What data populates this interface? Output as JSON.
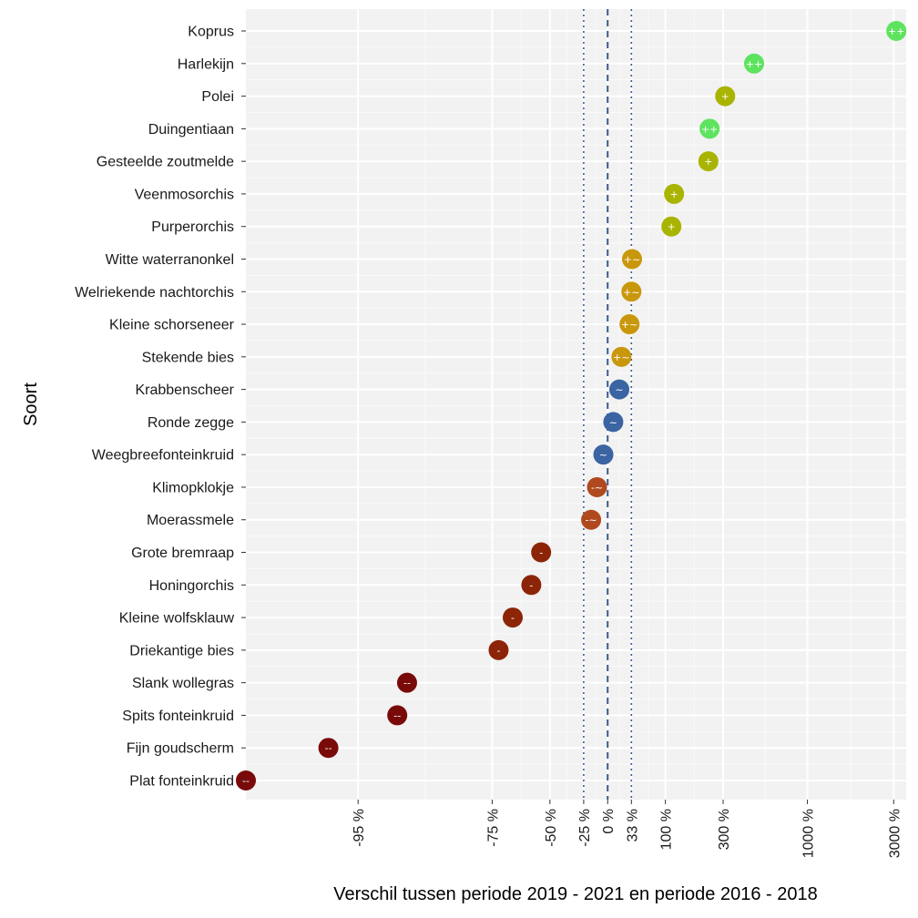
{
  "chart_data": {
    "type": "scatter",
    "title": "",
    "xlabel": "Verschil tussen periode 2019 - 2021 en periode 2016 - 2018",
    "ylabel": "Soort",
    "x_transform": "log(1 + pct/100)",
    "xlim": [
      -100,
      3500
    ],
    "x_ticks": [
      -95,
      -75,
      -50,
      -25,
      0,
      33,
      100,
      300,
      1000,
      3000
    ],
    "x_tick_labels": [
      "-95 %",
      "-75 %",
      "-50 %",
      "-25 %",
      "0 %",
      "33 %",
      "100 %",
      "300 %",
      "1000 %",
      "3000 %"
    ],
    "reference_lines": [
      {
        "value": 0,
        "style": "dashed"
      },
      {
        "value": -25,
        "style": "dotted"
      },
      {
        "value": 33,
        "style": "dotted"
      }
    ],
    "classes": {
      "++": "#5ee35e",
      "+": "#a8b400",
      "+~": "#c9970c",
      "~": "#3b64a3",
      "-~": "#b04a1e",
      "-": "#8c2508",
      "--": "#7a0a0a"
    },
    "points": [
      {
        "species": "Koprus",
        "value": 3100,
        "class": "++"
      },
      {
        "species": "Harlekijn",
        "value": 480,
        "class": "++"
      },
      {
        "species": "Polei",
        "value": 310,
        "class": "+"
      },
      {
        "species": "Duingentiaan",
        "value": 240,
        "class": "++"
      },
      {
        "species": "Gesteelde zoutmelde",
        "value": 235,
        "class": "+"
      },
      {
        "species": "Veenmosorchis",
        "value": 122,
        "class": "+"
      },
      {
        "species": "Purperorchis",
        "value": 115,
        "class": "+"
      },
      {
        "species": "Witte waterranonkel",
        "value": 34,
        "class": "+~"
      },
      {
        "species": "Welriekende nachtorchis",
        "value": 33,
        "class": "+~"
      },
      {
        "species": "Kleine schorseneer",
        "value": 30,
        "class": "+~"
      },
      {
        "species": "Stekende bies",
        "value": 18,
        "class": "+~"
      },
      {
        "species": "Krabbenscheer",
        "value": 15,
        "class": "~"
      },
      {
        "species": "Ronde zegge",
        "value": 7,
        "class": "~"
      },
      {
        "species": "Weegbreefonteinkruid",
        "value": -5,
        "class": "~"
      },
      {
        "species": "Klimopklokje",
        "value": -12,
        "class": "-~"
      },
      {
        "species": "Moerassmele",
        "value": -18,
        "class": "-~"
      },
      {
        "species": "Grote bremraap",
        "value": -55,
        "class": "-"
      },
      {
        "species": "Honingorchis",
        "value": -60,
        "class": "-"
      },
      {
        "species": "Kleine wolfsklauw",
        "value": -68,
        "class": "-"
      },
      {
        "species": "Driekantige bies",
        "value": -73,
        "class": "-"
      },
      {
        "species": "Slank wollegras",
        "value": -91,
        "class": "--"
      },
      {
        "species": "Spits fonteinkruid",
        "value": -92,
        "class": "--"
      },
      {
        "species": "Fijn goudscherm",
        "value": -96.5,
        "class": "--"
      },
      {
        "species": "Plat fonteinkruid",
        "value": -98.7,
        "class": "--"
      }
    ]
  }
}
